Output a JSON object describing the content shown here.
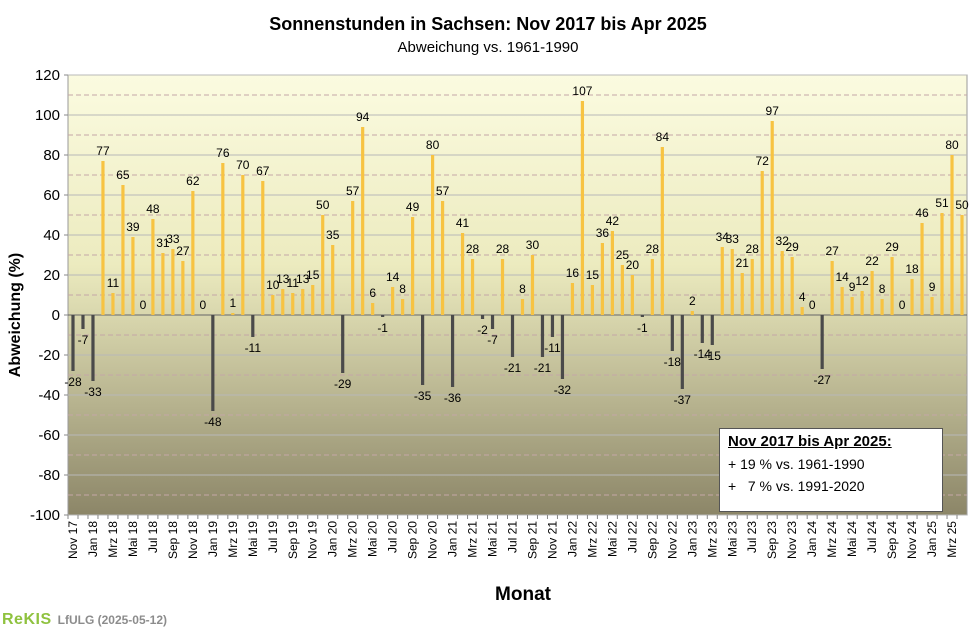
{
  "chart_data": {
    "type": "bar",
    "title": "Sonnenstunden  in Sachsen: Nov 2017 bis Apr 2025",
    "subtitle": "Abweichung vs. 1961-1990",
    "xlabel": "Monat",
    "ylabel": "Abweichung (%)",
    "ylim": [
      -100,
      120
    ],
    "yticks": [
      -100,
      -80,
      -60,
      -40,
      -20,
      0,
      20,
      40,
      60,
      80,
      100,
      120
    ],
    "grid": true,
    "categories": [
      "Nov 17",
      "Dez 17",
      "Jan 18",
      "Feb 18",
      "Mrz 18",
      "Apr 18",
      "Mai 18",
      "Jun 18",
      "Jul 18",
      "Aug 18",
      "Sep 18",
      "Okt 18",
      "Nov 18",
      "Dez 18",
      "Jan 19",
      "Feb 19",
      "Mrz 19",
      "Apr 19",
      "Mai 19",
      "Jun 19",
      "Jul 19",
      "Aug 19",
      "Sep 19",
      "Okt 19",
      "Nov 19",
      "Dez 19",
      "Jan 20",
      "Feb 20",
      "Mrz 20",
      "Apr 20",
      "Mai 20",
      "Jun 20",
      "Jul 20",
      "Aug 20",
      "Sep 20",
      "Okt 20",
      "Nov 20",
      "Dez 20",
      "Jan 21",
      "Feb 21",
      "Mrz 21",
      "Apr 21",
      "Mai 21",
      "Jun 21",
      "Jul 21",
      "Aug 21",
      "Sep 21",
      "Okt 21",
      "Nov 21",
      "Dez 21",
      "Jan 22",
      "Feb 22",
      "Mrz 22",
      "Apr 22",
      "Mai 22",
      "Jun 22",
      "Jul 22",
      "Aug 22",
      "Sep 22",
      "Okt 22",
      "Nov 22",
      "Dez 22",
      "Jan 23",
      "Feb 23",
      "Mrz 23",
      "Apr 23",
      "Mai 23",
      "Jun 23",
      "Jul 23",
      "Aug 23",
      "Sep 23",
      "Okt 23",
      "Nov 23",
      "Dez 23",
      "Jan 24",
      "Feb 24",
      "Mrz 24",
      "Apr 24",
      "Mai 24",
      "Jun 24",
      "Jul 24",
      "Aug 24",
      "Sep 24",
      "Okt 24",
      "Nov 24",
      "Dez 24",
      "Jan 25",
      "Feb 25",
      "Mrz 25",
      "Apr 25"
    ],
    "tick_labels": [
      "Nov 17",
      "Jan 18",
      "Mrz 18",
      "Mai 18",
      "Jul 18",
      "Sep 18",
      "Nov 18",
      "Jan 19",
      "Mrz 19",
      "Mai 19",
      "Jul 19",
      "Sep 19",
      "Nov 19",
      "Jan 20",
      "Mrz 20",
      "Mai 20",
      "Jul 20",
      "Sep 20",
      "Nov 20",
      "Jan 21",
      "Mrz 21",
      "Mai 21",
      "Jul 21",
      "Sep 21",
      "Nov 21",
      "Jan 22",
      "Mrz 22",
      "Mai 22",
      "Jul 22",
      "Sep 22",
      "Nov 22",
      "Jan 23",
      "Mrz 23",
      "Mai 23",
      "Jul 23",
      "Sep 23",
      "Nov 23",
      "Jan 24",
      "Mrz 24",
      "Mai 24",
      "Jul 24",
      "Sep 24",
      "Nov 24",
      "Jan 25",
      "Mrz 25"
    ],
    "values": [
      -28,
      -7,
      -33,
      77,
      11,
      65,
      39,
      0,
      48,
      31,
      33,
      27,
      62,
      0,
      -48,
      76,
      1,
      70,
      -11,
      67,
      10,
      13,
      11,
      13,
      15,
      50,
      35,
      -29,
      57,
      94,
      6,
      -1,
      14,
      8,
      49,
      -35,
      80,
      57,
      -36,
      41,
      28,
      -2,
      -7,
      28,
      -21,
      8,
      30,
      -21,
      -11,
      -32,
      16,
      107,
      15,
      36,
      42,
      25,
      20,
      -1,
      28,
      84,
      -18,
      -37,
      2,
      -14,
      -15,
      34,
      33,
      21,
      28,
      72,
      97,
      32,
      29,
      4,
      0,
      -27,
      27,
      14,
      9,
      12,
      22,
      8,
      29,
      0,
      18,
      46,
      9,
      51,
      80,
      50
    ],
    "colors": {
      "positive": "#f7c342",
      "negative": "#4a4a4a"
    }
  },
  "infobox": {
    "heading": "Nov 2017 bis Apr 2025:",
    "line1": "+ 19 % vs. 1961-1990",
    "line2": "+   7 % vs. 1991-2020"
  },
  "footer": {
    "logo": "ReKIS",
    "credit": "LfULG (2025-05-12)"
  }
}
